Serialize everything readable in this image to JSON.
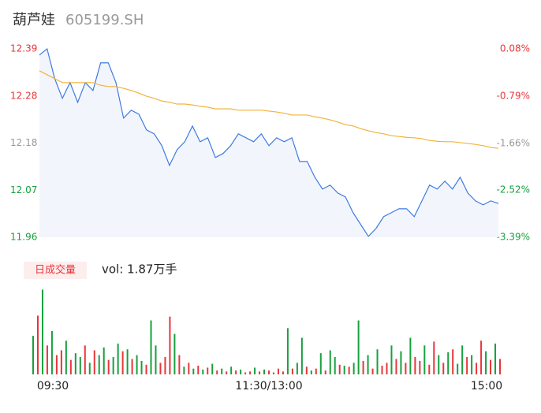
{
  "header": {
    "name": "葫芦娃",
    "code": "605199.SH"
  },
  "chart_data": {
    "type": "line",
    "x": [
      0,
      4,
      8,
      12,
      16,
      20,
      24,
      28,
      32,
      36,
      40,
      44,
      48,
      52,
      56,
      60,
      64,
      68,
      72,
      76,
      80,
      84,
      88,
      92,
      96,
      100,
      104,
      108,
      112,
      116,
      120,
      124,
      128,
      132,
      136,
      140,
      144,
      148,
      152,
      156,
      160,
      164,
      168,
      172,
      176,
      180,
      184,
      188,
      192,
      196,
      200,
      204,
      208,
      212,
      216,
      220,
      224,
      228,
      232,
      236,
      240
    ],
    "xlim": [
      0,
      240
    ],
    "xticks": [
      {
        "value": 0,
        "label": "09:30"
      },
      {
        "value": 120,
        "label": "11:30/13:00"
      },
      {
        "value": 240,
        "label": "15:00"
      }
    ],
    "series": [
      {
        "color": "#3d7be0",
        "values": [
          12.376,
          12.39,
          12.322,
          12.277,
          12.313,
          12.268,
          12.313,
          12.295,
          12.358,
          12.358,
          12.313,
          12.232,
          12.25,
          12.241,
          12.205,
          12.196,
          12.169,
          12.124,
          12.16,
          12.178,
          12.214,
          12.178,
          12.187,
          12.142,
          12.151,
          12.169,
          12.196,
          12.187,
          12.178,
          12.196,
          12.169,
          12.187,
          12.178,
          12.187,
          12.133,
          12.133,
          12.097,
          12.07,
          12.079,
          12.061,
          12.052,
          12.016,
          11.989,
          11.962,
          11.98,
          12.007,
          12.016,
          12.025,
          12.025,
          12.007,
          12.043,
          12.079,
          12.07,
          12.088,
          12.07,
          12.097,
          12.061,
          12.043,
          12.034,
          12.043,
          12.037
        ]
      },
      {
        "color": "#f2b33a",
        "values": [
          12.34,
          12.331,
          12.322,
          12.313,
          12.313,
          12.313,
          12.313,
          12.313,
          12.307,
          12.304,
          12.304,
          12.3,
          12.295,
          12.289,
          12.282,
          12.277,
          12.271,
          12.268,
          12.264,
          12.264,
          12.262,
          12.259,
          12.257,
          12.253,
          12.253,
          12.253,
          12.25,
          12.25,
          12.25,
          12.25,
          12.248,
          12.246,
          12.243,
          12.239,
          12.239,
          12.239,
          12.235,
          12.232,
          12.228,
          12.223,
          12.217,
          12.214,
          12.208,
          12.203,
          12.199,
          12.196,
          12.192,
          12.19,
          12.188,
          12.187,
          12.185,
          12.181,
          12.179,
          12.178,
          12.178,
          12.176,
          12.174,
          12.172,
          12.169,
          12.165,
          12.163
        ]
      }
    ],
    "ylim": [
      11.96,
      12.39
    ],
    "yticks": [
      12.39,
      {
        "value": 12.2825,
        "label": "12.28"
      },
      {
        "value": 12.175,
        "label": "12.18"
      },
      {
        "value": 12.0675,
        "label": "12.07"
      },
      11.96
    ],
    "y2lim": [
      -3.39,
      0.08
    ],
    "y2ticks": [
      {
        "value": 0.08,
        "label": "0.08%"
      },
      {
        "value": -0.79,
        "label": "-0.79%"
      },
      {
        "value": -1.66,
        "label": "-1.66%"
      },
      {
        "value": -2.52,
        "label": "-2.52%"
      },
      {
        "value": -3.39,
        "label": "-3.39%"
      }
    ],
    "up_color": "#e8353a",
    "down_color": "#17a03e",
    "flat_color": "#999999"
  },
  "volume": {
    "title": "日成交量",
    "summary": "vol: 1.87万手",
    "ylim": [
      0,
      900
    ],
    "values": [
      400,
      610,
      880,
      300,
      450,
      200,
      250,
      350,
      150,
      220,
      180,
      300,
      120,
      250,
      200,
      280,
      150,
      180,
      320,
      240,
      260,
      160,
      200,
      140,
      100,
      560,
      300,
      120,
      180,
      600,
      420,
      200,
      80,
      120,
      60,
      90,
      50,
      70,
      110,
      40,
      60,
      30,
      80,
      40,
      50,
      20,
      30,
      70,
      30,
      50,
      40,
      20,
      60,
      30,
      480,
      60,
      120,
      380,
      80,
      40,
      60,
      220,
      40,
      250,
      180,
      100,
      90,
      80,
      120,
      560,
      140,
      200,
      60,
      260,
      90,
      120,
      300,
      160,
      240,
      120,
      380,
      180,
      140,
      300,
      100,
      340,
      200,
      120,
      230,
      260,
      110,
      300,
      180,
      200,
      120,
      350,
      240,
      150,
      320,
      160
    ],
    "colors": [
      "#17a03e",
      "#e8353a",
      "#17a03e",
      "#e8353a",
      "#17a03e",
      "#e8353a",
      "#e8353a",
      "#17a03e",
      "#e8353a",
      "#17a03e",
      "#17a03e",
      "#e8353a",
      "#17a03e",
      "#e8353a",
      "#17a03e",
      "#17a03e",
      "#e8353a",
      "#17a03e",
      "#17a03e",
      "#e8353a",
      "#17a03e",
      "#e8353a",
      "#17a03e",
      "#17a03e",
      "#e8353a",
      "#17a03e",
      "#17a03e",
      "#e8353a",
      "#e8353a",
      "#e8353a",
      "#17a03e",
      "#e8353a",
      "#17a03e",
      "#e8353a",
      "#17a03e",
      "#e8353a",
      "#17a03e",
      "#e8353a",
      "#17a03e",
      "#e8353a",
      "#17a03e",
      "#e8353a",
      "#17a03e",
      "#e8353a",
      "#17a03e",
      "#e8353a",
      "#e8353a",
      "#17a03e",
      "#e8353a",
      "#17a03e",
      "#e8353a",
      "#17a03e",
      "#e8353a",
      "#e8353a",
      "#17a03e",
      "#e8353a",
      "#17a03e",
      "#17a03e",
      "#e8353a",
      "#17a03e",
      "#e8353a",
      "#17a03e",
      "#e8353a",
      "#17a03e",
      "#17a03e",
      "#e8353a",
      "#17a03e",
      "#e8353a",
      "#17a03e",
      "#17a03e",
      "#e8353a",
      "#17a03e",
      "#e8353a",
      "#17a03e",
      "#e8353a",
      "#e8353a",
      "#17a03e",
      "#e8353a",
      "#17a03e",
      "#e8353a",
      "#17a03e",
      "#e8353a",
      "#e8353a",
      "#17a03e",
      "#e8353a",
      "#e8353a",
      "#17a03e",
      "#e8353a",
      "#17a03e",
      "#e8353a",
      "#17a03e",
      "#17a03e",
      "#e8353a",
      "#17a03e",
      "#e8353a",
      "#e8353a",
      "#17a03e",
      "#e8353a",
      "#17a03e",
      "#e8353a"
    ]
  }
}
